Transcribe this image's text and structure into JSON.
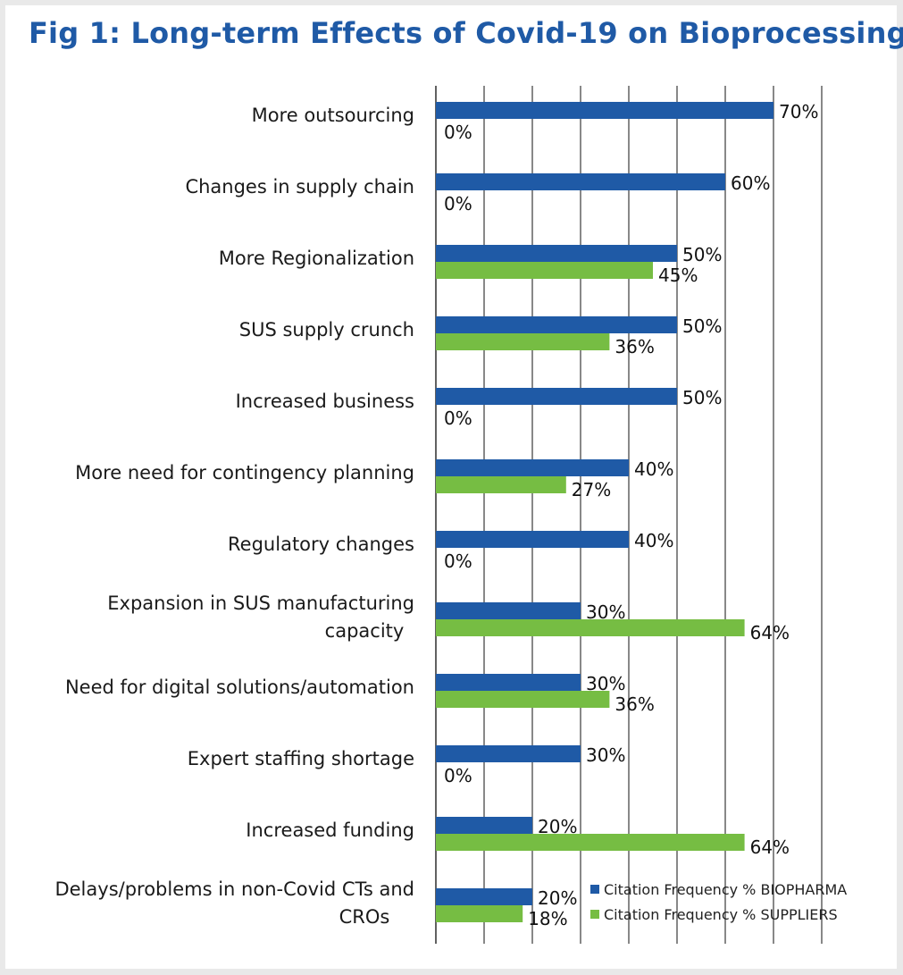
{
  "chart_data": {
    "type": "bar",
    "orientation": "horizontal",
    "title": "Fig 1: Long-term Effects of Covid-19 on Bioprocessing",
    "categories": [
      "More outsourcing",
      "Changes in supply chain",
      "More Regionalization",
      "SUS supply crunch",
      "Increased business",
      "More need for contingency planning",
      "Regulatory changes",
      "Expansion in SUS manufacturing capacity",
      "Need for digital solutions/automation",
      "Expert staffing shortage",
      "Increased funding",
      "Delays/problems in non-Covid CTs and CROs"
    ],
    "series": [
      {
        "name": "Citation Frequency % BIOPHARMA",
        "color": "#1f5aa6",
        "values": [
          70,
          60,
          50,
          50,
          50,
          40,
          40,
          30,
          30,
          30,
          20,
          20
        ]
      },
      {
        "name": "Citation Frequency % SUPPLIERS",
        "color": "#76bd43",
        "values": [
          0,
          0,
          45,
          36,
          0,
          27,
          0,
          64,
          36,
          0,
          64,
          18
        ]
      }
    ],
    "value_suffix": "%",
    "xlim": [
      0,
      80
    ],
    "grid": true,
    "legend_position": "bottom-right"
  }
}
